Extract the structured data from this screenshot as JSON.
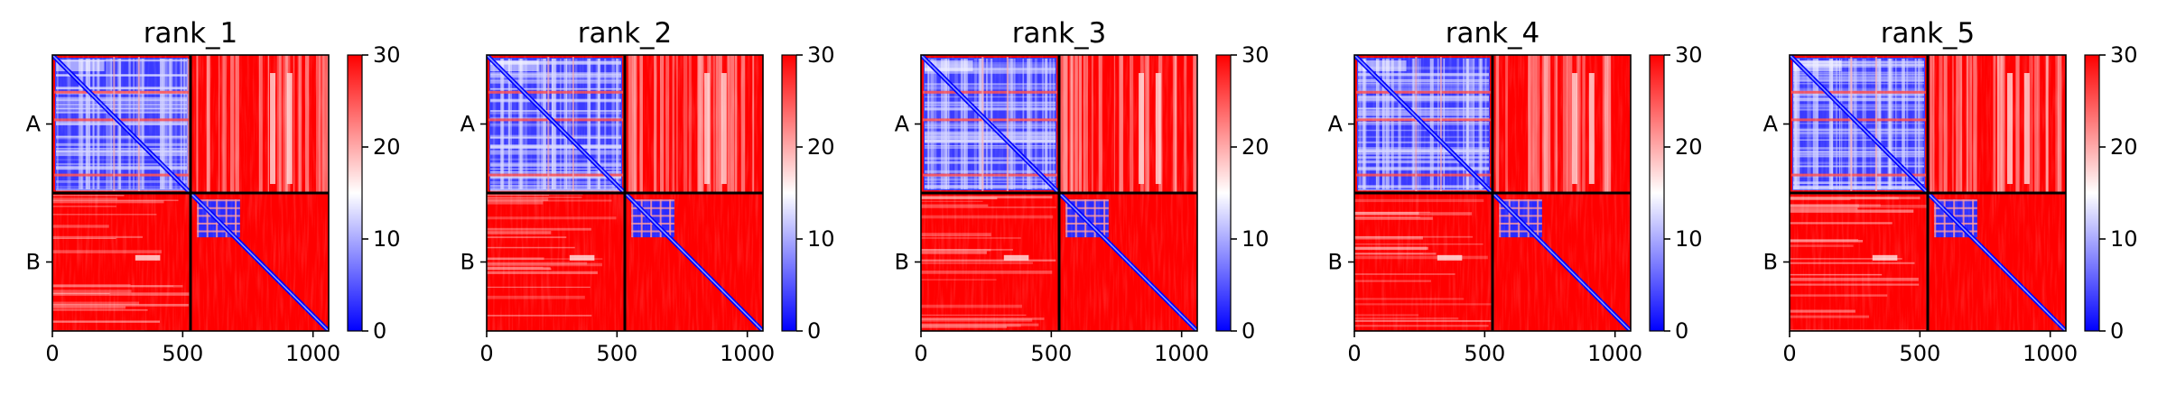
{
  "chart_data": [
    {
      "type": "heatmap",
      "title": "rank_1",
      "x_ticks": [
        0,
        500,
        1000
      ],
      "xlim": [
        0,
        1060
      ],
      "chain_labels": [
        "A",
        "B"
      ],
      "chain_boundary": 530,
      "colorbar": {
        "ticks": [
          0,
          10,
          20,
          30
        ],
        "range": [
          0,
          30
        ],
        "colors": [
          "#0000ff",
          "#ffffff",
          "#ff0000"
        ]
      },
      "grid": false,
      "legend": "none"
    },
    {
      "type": "heatmap",
      "title": "rank_2",
      "x_ticks": [
        0,
        500,
        1000
      ],
      "xlim": [
        0,
        1060
      ],
      "chain_labels": [
        "A",
        "B"
      ],
      "chain_boundary": 530,
      "colorbar": {
        "ticks": [
          0,
          10,
          20,
          30
        ],
        "range": [
          0,
          30
        ],
        "colors": [
          "#0000ff",
          "#ffffff",
          "#ff0000"
        ]
      },
      "grid": false,
      "legend": "none"
    },
    {
      "type": "heatmap",
      "title": "rank_3",
      "x_ticks": [
        0,
        500,
        1000
      ],
      "xlim": [
        0,
        1060
      ],
      "chain_labels": [
        "A",
        "B"
      ],
      "chain_boundary": 530,
      "colorbar": {
        "ticks": [
          0,
          10,
          20,
          30
        ],
        "range": [
          0,
          30
        ],
        "colors": [
          "#0000ff",
          "#ffffff",
          "#ff0000"
        ]
      },
      "grid": false,
      "legend": "none"
    },
    {
      "type": "heatmap",
      "title": "rank_4",
      "x_ticks": [
        0,
        500,
        1000
      ],
      "xlim": [
        0,
        1060
      ],
      "chain_labels": [
        "A",
        "B"
      ],
      "chain_boundary": 530,
      "colorbar": {
        "ticks": [
          0,
          10,
          20,
          30
        ],
        "range": [
          0,
          30
        ],
        "colors": [
          "#0000ff",
          "#ffffff",
          "#ff0000"
        ]
      },
      "grid": false,
      "legend": "none"
    },
    {
      "type": "heatmap",
      "title": "rank_5",
      "x_ticks": [
        0,
        500,
        1000
      ],
      "xlim": [
        0,
        1060
      ],
      "chain_labels": [
        "A",
        "B"
      ],
      "chain_boundary": 530,
      "colorbar": {
        "ticks": [
          0,
          10,
          20,
          30
        ],
        "range": [
          0,
          30
        ],
        "colors": [
          "#0000ff",
          "#ffffff",
          "#ff0000"
        ]
      },
      "grid": false,
      "legend": "none"
    }
  ]
}
